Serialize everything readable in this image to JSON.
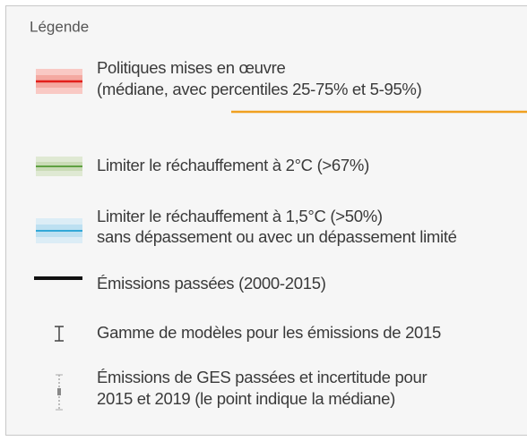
{
  "legend": {
    "title": "Légende",
    "items": [
      {
        "lines": [
          "Politiques mises en œuvre",
          "(médiane, avec percentiles 25-75% et 5-95%)"
        ]
      },
      {
        "lines": [
          "Limiter le réchauffement à 2°C (>67%)"
        ]
      },
      {
        "lines": [
          "Limiter le réchauffement à 1,5°C (>50%)",
          "sans dépassement ou avec un dépassement limité"
        ]
      },
      {
        "lines": [
          "Émissions passées (2000-2015)"
        ]
      },
      {
        "lines": [
          "Gamme de modèles pour les émissions de 2015"
        ]
      },
      {
        "lines": [
          "Émissions de GES passées et incertitude pour",
          "2015 et 2019 (le point indique la médiane)"
        ]
      }
    ]
  }
}
